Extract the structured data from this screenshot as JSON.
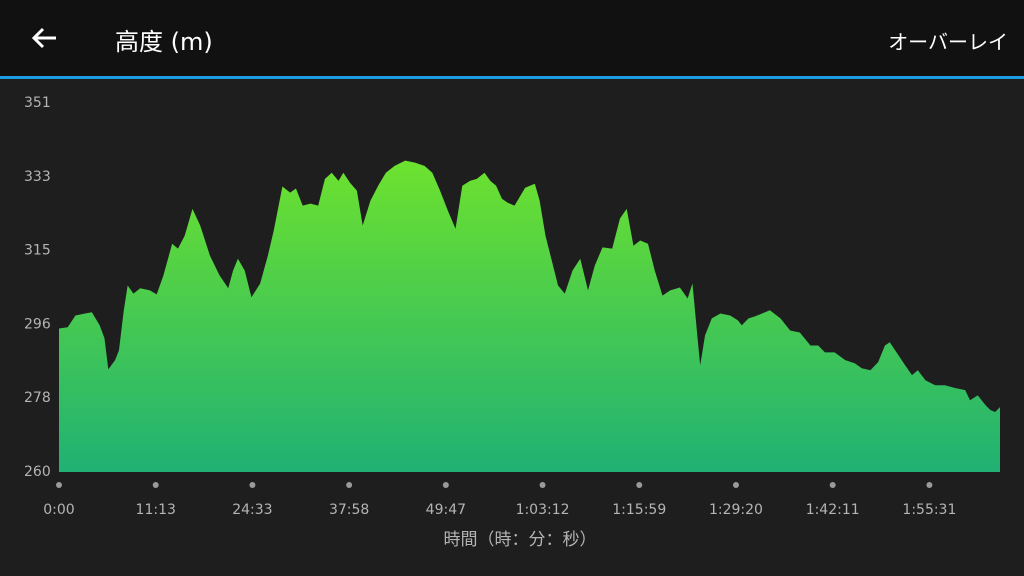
{
  "header": {
    "title": "高度 (m)",
    "action": "オーバーレイ"
  },
  "chart_data": {
    "type": "area",
    "x_label": "時間（時：分：秒）",
    "color": "url(#g)",
    "xlim": [
      0,
      9.73
    ],
    "xticks": [
      {
        "value": 0,
        "label": "0:00"
      },
      {
        "value": 1,
        "label": "11:13"
      },
      {
        "value": 2,
        "label": "24:33"
      },
      {
        "value": 3,
        "label": "37:58"
      },
      {
        "value": 4,
        "label": "49:47"
      },
      {
        "value": 5,
        "label": "1:03:12"
      },
      {
        "value": 6,
        "label": "1:15:59"
      },
      {
        "value": 7,
        "label": "1:29:20"
      },
      {
        "value": 8,
        "label": "1:42:11"
      },
      {
        "value": 9,
        "label": "1:55:31"
      }
    ],
    "ylim": [
      260,
      351
    ],
    "yticks": [
      260,
      {
        "value": 278.2,
        "label": "278"
      },
      {
        "value": 296.4,
        "label": "296"
      },
      {
        "value": 314.6,
        "label": "315"
      },
      {
        "value": 332.8,
        "label": "333"
      },
      351
    ],
    "x": [
      0,
      0.09,
      0.17,
      0.27,
      0.34,
      0.42,
      0.47,
      0.51,
      0.58,
      0.62,
      0.67,
      0.71,
      0.77,
      0.84,
      0.94,
      1.01,
      1.08,
      1.17,
      1.23,
      1.3,
      1.38,
      1.46,
      1.56,
      1.66,
      1.75,
      1.8,
      1.85,
      1.92,
      1.99,
      2.08,
      2.16,
      2.22,
      2.31,
      2.39,
      2.45,
      2.52,
      2.6,
      2.68,
      2.75,
      2.82,
      2.89,
      2.94,
      3.01,
      3.08,
      3.14,
      3.22,
      3.3,
      3.38,
      3.47,
      3.58,
      3.68,
      3.78,
      3.86,
      3.94,
      4.02,
      4.1,
      4.17,
      4.25,
      4.32,
      4.4,
      4.46,
      4.52,
      4.58,
      4.64,
      4.71,
      4.77,
      4.82,
      4.92,
      4.97,
      5.03,
      5.1,
      5.16,
      5.23,
      5.31,
      5.39,
      5.47,
      5.54,
      5.62,
      5.72,
      5.8,
      5.87,
      5.94,
      6.01,
      6.09,
      6.16,
      6.24,
      6.32,
      6.42,
      6.5,
      6.55,
      6.6,
      6.63,
      6.68,
      6.75,
      6.84,
      6.94,
      7.02,
      7.06,
      7.13,
      7.2,
      7.3,
      7.35,
      7.46,
      7.56,
      7.66,
      7.77,
      7.85,
      7.92,
      8.02,
      8.13,
      8.23,
      8.3,
      8.39,
      8.47,
      8.54,
      8.59,
      8.68,
      8.75,
      8.82,
      8.88,
      8.96,
      9.06,
      9.16,
      9.27,
      9.37,
      9.42,
      9.5,
      9.58,
      9.63,
      9.68,
      9.73
    ],
    "values": [
      295.4,
      295.7,
      298.6,
      299.1,
      299.4,
      296.2,
      293.0,
      285.3,
      287.6,
      290.0,
      299.9,
      306.0,
      304.0,
      305.3,
      304.8,
      303.8,
      308.5,
      316.3,
      315.1,
      318.3,
      324.9,
      320.8,
      313.4,
      308.5,
      305.3,
      309.7,
      312.6,
      309.7,
      303.1,
      306.5,
      313.4,
      319.5,
      330.4,
      328.9,
      329.9,
      325.7,
      326.2,
      325.7,
      332.3,
      333.8,
      331.8,
      333.8,
      331.3,
      329.4,
      320.8,
      326.9,
      330.6,
      333.8,
      335.5,
      336.8,
      336.3,
      335.5,
      333.8,
      329.4,
      324.5,
      320.0,
      330.6,
      331.8,
      332.3,
      333.8,
      331.8,
      330.6,
      327.4,
      326.4,
      325.7,
      328.1,
      330.1,
      331.1,
      326.9,
      318.3,
      311.7,
      306.0,
      304.0,
      309.7,
      312.6,
      304.8,
      310.9,
      315.4,
      315.1,
      322.5,
      324.9,
      315.8,
      317.1,
      316.3,
      309.7,
      303.5,
      304.8,
      305.5,
      302.8,
      306.5,
      293.7,
      286.3,
      293.7,
      297.9,
      299.1,
      298.6,
      297.4,
      296.2,
      297.9,
      298.4,
      299.4,
      299.9,
      297.9,
      294.9,
      294.4,
      291.2,
      291.2,
      289.5,
      289.5,
      287.6,
      286.8,
      285.6,
      285.1,
      287.1,
      291.2,
      292.0,
      288.8,
      286.3,
      283.9,
      285.1,
      282.6,
      281.4,
      281.4,
      280.7,
      280.2,
      277.7,
      278.9,
      276.5,
      275.3,
      274.8,
      276.0
    ]
  }
}
